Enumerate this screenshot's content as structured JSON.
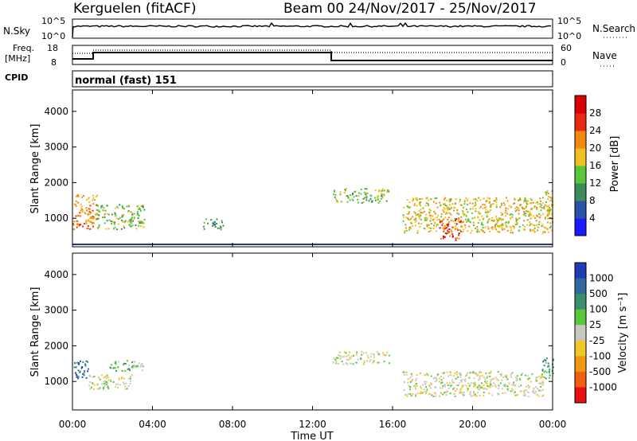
{
  "header": {
    "station": "Kerguelen (fitACF)",
    "beam_date": "Beam 00  24/Nov/2017 - 25/Nov/2017"
  },
  "panels": {
    "nsky": {
      "label": "N.Sky",
      "left_ticks": [
        "10^5",
        "10^0"
      ],
      "right_ticks": [
        "10^5",
        "10^0"
      ],
      "right_label": "N.Search"
    },
    "freq": {
      "label_line1": "Freq.",
      "label_line2": "[MHz]",
      "left_ticks": [
        "18",
        "8"
      ],
      "right_ticks": [
        "60",
        "0"
      ],
      "right_label": "Nave"
    },
    "cpid": {
      "label": "CPID",
      "value": "normal (fast) 151"
    }
  },
  "chart_data": [
    {
      "type": "heatmap",
      "name": "power",
      "ylabel": "Slant Range [km]",
      "ylim": [
        200,
        4600
      ],
      "yticks": [
        "1000",
        "2000",
        "3000",
        "4000"
      ],
      "colorbar_label": "Power [dB]",
      "colorbar_ticks": [
        "4",
        "8",
        "12",
        "16",
        "20",
        "24",
        "28"
      ],
      "colors": [
        "#1a1aff",
        "#2a52a8",
        "#3c8c5a",
        "#58c63a",
        "#f0c020",
        "#f08a10",
        "#e82a10",
        "#d80000"
      ],
      "patches": [
        {
          "t0": 0.0,
          "t1": 1.2,
          "r0": 700,
          "r1": 1700,
          "level": 5
        },
        {
          "t0": 1.2,
          "t1": 3.6,
          "r0": 700,
          "r1": 1400,
          "level": 3
        },
        {
          "t0": 13.0,
          "t1": 15.8,
          "r0": 1450,
          "r1": 1850,
          "level": 3
        },
        {
          "t0": 16.5,
          "t1": 24.0,
          "r0": 600,
          "r1": 1600,
          "level": 4
        },
        {
          "t0": 18.3,
          "t1": 19.4,
          "r0": 400,
          "r1": 1000,
          "level": 6
        },
        {
          "t0": 23.5,
          "t1": 24.0,
          "r0": 1000,
          "r1": 1800,
          "level": 4
        },
        {
          "t0": 6.5,
          "t1": 7.5,
          "r0": 700,
          "r1": 1000,
          "level": 2
        }
      ]
    },
    {
      "type": "heatmap",
      "name": "velocity",
      "ylabel": "Slant Range [km]",
      "ylim": [
        200,
        4600
      ],
      "yticks": [
        "1000",
        "2000",
        "3000",
        "4000"
      ],
      "colorbar_label": "Velocity [m s⁻¹]",
      "colorbar_ticks": [
        "1000",
        "500",
        "100",
        "25",
        "-25",
        "-100",
        "-500",
        "-1000"
      ],
      "colors": [
        "#1e3cb4",
        "#2e6aa0",
        "#3c8c6e",
        "#5ac83c",
        "#c8c8c0",
        "#f0c828",
        "#f09a10",
        "#f06010",
        "#e81010"
      ],
      "patches": [
        {
          "t0": 0.0,
          "t1": 0.8,
          "r0": 1100,
          "r1": 1600,
          "level": 1
        },
        {
          "t0": 1.8,
          "t1": 3.6,
          "r0": 1300,
          "r1": 1600,
          "level": 3
        },
        {
          "t0": 0.8,
          "t1": 3.0,
          "r0": 800,
          "r1": 1200,
          "level": 4
        },
        {
          "t0": 13.0,
          "t1": 15.8,
          "r0": 1500,
          "r1": 1850,
          "level": 4
        },
        {
          "t0": 16.5,
          "t1": 23.5,
          "r0": 600,
          "r1": 1300,
          "level": 4
        },
        {
          "t0": 23.4,
          "t1": 24.0,
          "r0": 1100,
          "r1": 1700,
          "level": 2
        }
      ]
    }
  ],
  "xaxis": {
    "label": "Time UT",
    "ticks": [
      "00:00",
      "04:00",
      "08:00",
      "12:00",
      "16:00",
      "20:00",
      "00:00"
    ],
    "range_hours": [
      0,
      24
    ]
  }
}
